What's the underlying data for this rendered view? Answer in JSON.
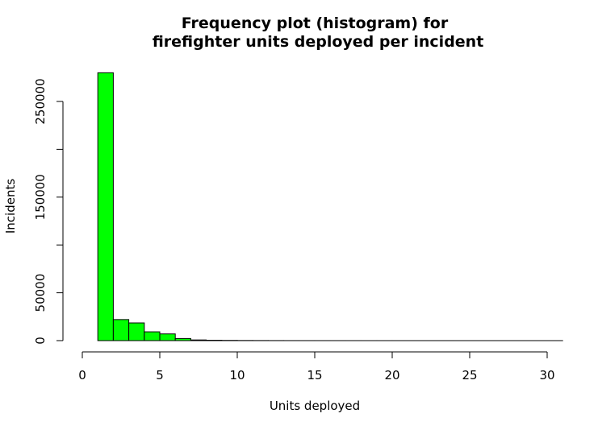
{
  "chart_data": {
    "type": "bar",
    "histogram": true,
    "title": [
      "Frequency plot (histogram) for",
      "firefighter units deployed per incident"
    ],
    "xlabel": "Units deployed",
    "ylabel": "Incidents",
    "bar_color": "#00ff00",
    "bin_edges": [
      1,
      2,
      3,
      4,
      5,
      6,
      7,
      8,
      9,
      10,
      11,
      12,
      13,
      14,
      15,
      16,
      17,
      18,
      19,
      20,
      21,
      22,
      23,
      24,
      25,
      26,
      27,
      28,
      29,
      30,
      31
    ],
    "values": [
      280000,
      22000,
      18500,
      9200,
      7000,
      2200,
      700,
      400,
      250,
      150,
      100,
      60,
      40,
      20,
      15,
      10,
      8,
      6,
      5,
      4,
      3,
      2,
      2,
      1,
      1,
      1,
      1,
      1,
      1,
      1
    ],
    "xlim": [
      0,
      31
    ],
    "ylim": [
      0,
      280000
    ],
    "x_ticks": [
      0,
      5,
      10,
      15,
      20,
      25,
      30
    ],
    "x_tick_labels": [
      "0",
      "5",
      "10",
      "15",
      "20",
      "25",
      "30"
    ],
    "y_ticks": [
      0,
      50000,
      100000,
      150000,
      200000,
      250000
    ],
    "y_tick_labels": [
      "0",
      "50000",
      "",
      "150000",
      "",
      "250000"
    ],
    "grid": false,
    "legend": "none"
  }
}
